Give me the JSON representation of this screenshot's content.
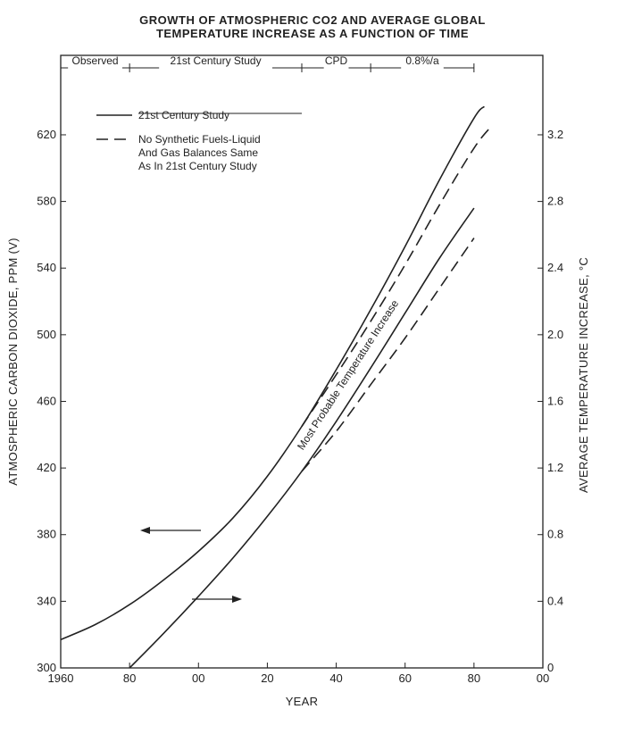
{
  "chart_data": {
    "type": "line",
    "title_line1": "GROWTH OF ATMOSPHERIC CO2 AND AVERAGE GLOBAL",
    "title_line2": "TEMPERATURE INCREASE AS A FUNCTION OF TIME",
    "xlabel": "YEAR",
    "ylabel_left": "ATMOSPHERIC CARBON DIOXIDE, PPM (V)",
    "ylabel_right": "AVERAGE TEMPERATURE INCREASE, °C",
    "xlim": [
      1960,
      2100
    ],
    "ylim_left": [
      300,
      650
    ],
    "ylim_right": [
      0,
      3.5
    ],
    "x_ticks": [
      {
        "value": 1960,
        "label": "1960"
      },
      {
        "value": 1980,
        "label": "80"
      },
      {
        "value": 2000,
        "label": "00"
      },
      {
        "value": 2020,
        "label": "20"
      },
      {
        "value": 2040,
        "label": "40"
      },
      {
        "value": 2060,
        "label": "60"
      },
      {
        "value": 2080,
        "label": "80"
      },
      {
        "value": 2100,
        "label": "00"
      }
    ],
    "y_ticks_left": [
      300,
      340,
      380,
      420,
      460,
      500,
      540,
      580,
      620
    ],
    "y_ticks_right": [
      {
        "value": 0,
        "label": "0"
      },
      {
        "value": 0.4,
        "label": "0.4"
      },
      {
        "value": 0.8,
        "label": "0.8"
      },
      {
        "value": 1.2,
        "label": "1.2"
      },
      {
        "value": 1.6,
        "label": "1.6"
      },
      {
        "value": 2.0,
        "label": "2.0"
      },
      {
        "value": 2.4,
        "label": "2.4"
      },
      {
        "value": 2.8,
        "label": "2.8"
      },
      {
        "value": 3.2,
        "label": "3.2"
      }
    ],
    "phases": [
      {
        "label": "Observed",
        "start": 1960,
        "end": 1980
      },
      {
        "label": "21st Century Study",
        "start": 1980,
        "end": 2030
      },
      {
        "label": "CPD",
        "start": 2030,
        "end": 2050
      },
      {
        "label": "0.8%/a",
        "start": 2050,
        "end": 2080
      }
    ],
    "legend": [
      {
        "style": "solid",
        "label_lines": [
          "21st Century Study"
        ]
      },
      {
        "style": "dashed",
        "label_lines": [
          "No Synthetic Fuels-Liquid",
          "And Gas Balances Same",
          "As In 21st Century Study"
        ]
      }
    ],
    "annotation": "Most Probable Temperature Increase",
    "series": [
      {
        "style": "solid",
        "axis": "left",
        "x": [
          1960,
          1970,
          1980,
          1990,
          2000,
          2010,
          2020,
          2030,
          2040,
          2050,
          2060,
          2070,
          2080,
          2083
        ],
        "y": [
          317,
          326,
          338,
          353,
          370,
          390,
          415,
          445,
          479,
          515,
          553,
          593,
          630,
          637
        ]
      },
      {
        "style": "dashed",
        "axis": "left",
        "x": [
          2030,
          2040,
          2050,
          2060,
          2070,
          2080,
          2085
        ],
        "y": [
          445,
          476,
          508,
          542,
          578,
          612,
          625
        ]
      },
      {
        "style": "solid",
        "axis": "right",
        "x": [
          1980,
          1990,
          2000,
          2010,
          2020,
          2030,
          2040,
          2050,
          2060,
          2070,
          2080
        ],
        "y": [
          0,
          0.21,
          0.43,
          0.66,
          0.91,
          1.18,
          1.48,
          1.8,
          2.13,
          2.46,
          2.76
        ]
      },
      {
        "style": "dashed",
        "axis": "right",
        "x": [
          2030,
          2040,
          2050,
          2060,
          2070,
          2080
        ],
        "y": [
          1.18,
          1.42,
          1.7,
          1.98,
          2.28,
          2.58
        ]
      }
    ],
    "arrows": [
      {
        "direction": "left",
        "axis": "left"
      },
      {
        "direction": "right",
        "axis": "right"
      }
    ]
  }
}
